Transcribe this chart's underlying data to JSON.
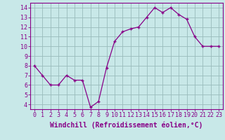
{
  "x": [
    0,
    1,
    2,
    3,
    4,
    5,
    6,
    7,
    8,
    9,
    10,
    11,
    12,
    13,
    14,
    15,
    16,
    17,
    18,
    19,
    20,
    21,
    22,
    23
  ],
  "y": [
    8.0,
    7.0,
    6.0,
    6.0,
    7.0,
    6.5,
    6.5,
    3.7,
    4.3,
    7.8,
    10.5,
    11.5,
    11.8,
    12.0,
    13.0,
    14.0,
    13.5,
    14.0,
    13.3,
    12.8,
    11.0,
    10.0,
    10.0,
    10.0
  ],
  "line_color": "#880088",
  "marker": "+",
  "bg_color": "#c8e8e8",
  "grid_color": "#99bbbb",
  "xlabel": "Windchill (Refroidissement éolien,°C)",
  "xlim_min": -0.5,
  "xlim_max": 23.5,
  "ylim_min": 3.5,
  "ylim_max": 14.5,
  "yticks": [
    4,
    5,
    6,
    7,
    8,
    9,
    10,
    11,
    12,
    13,
    14
  ],
  "xticks": [
    0,
    1,
    2,
    3,
    4,
    5,
    6,
    7,
    8,
    9,
    10,
    11,
    12,
    13,
    14,
    15,
    16,
    17,
    18,
    19,
    20,
    21,
    22,
    23
  ],
  "text_color": "#880088",
  "bar_color": "#880088",
  "tick_fontsize": 6.0,
  "xlabel_fontsize": 7.0,
  "markersize": 3.5,
  "linewidth": 0.9,
  "markeredgewidth": 1.0
}
